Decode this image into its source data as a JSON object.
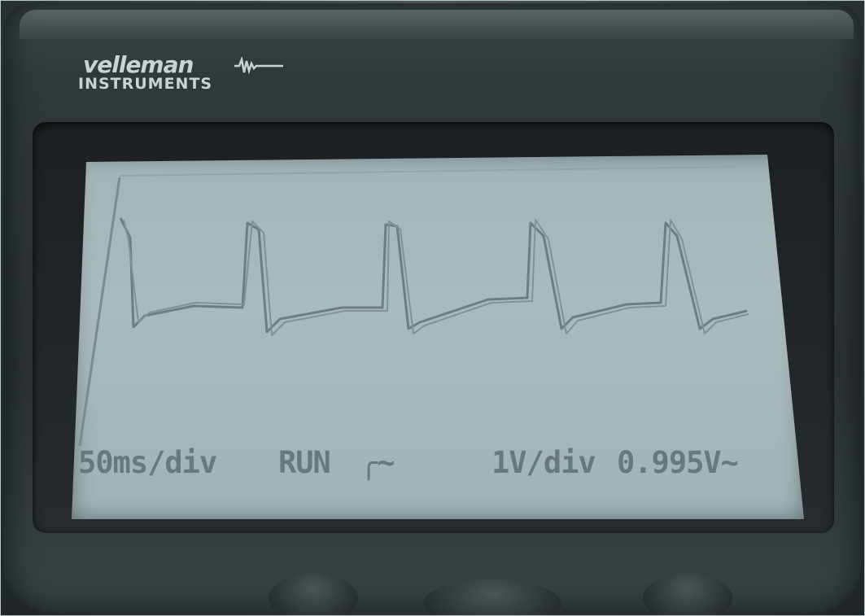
{
  "brand": {
    "name": "velleman",
    "subtitle": "INSTRUMENTS",
    "logo_icon": "waveform-logo-icon",
    "text_color": "#c7d3d5"
  },
  "screen": {
    "background_color": "#a7b8bb",
    "trace_color": "#6b7b7d",
    "status": {
      "time_div": "50ms/div",
      "run_state": "RUN",
      "trigger_icon": "rising-edge-trigger-icon",
      "trigger_label": "╭~",
      "volt_div": "1V/div",
      "reading": "0.995V~"
    }
  },
  "buttons": [
    {
      "icon": "button-dome"
    },
    {
      "icon": "button-dome"
    },
    {
      "icon": "button-dome"
    }
  ]
}
